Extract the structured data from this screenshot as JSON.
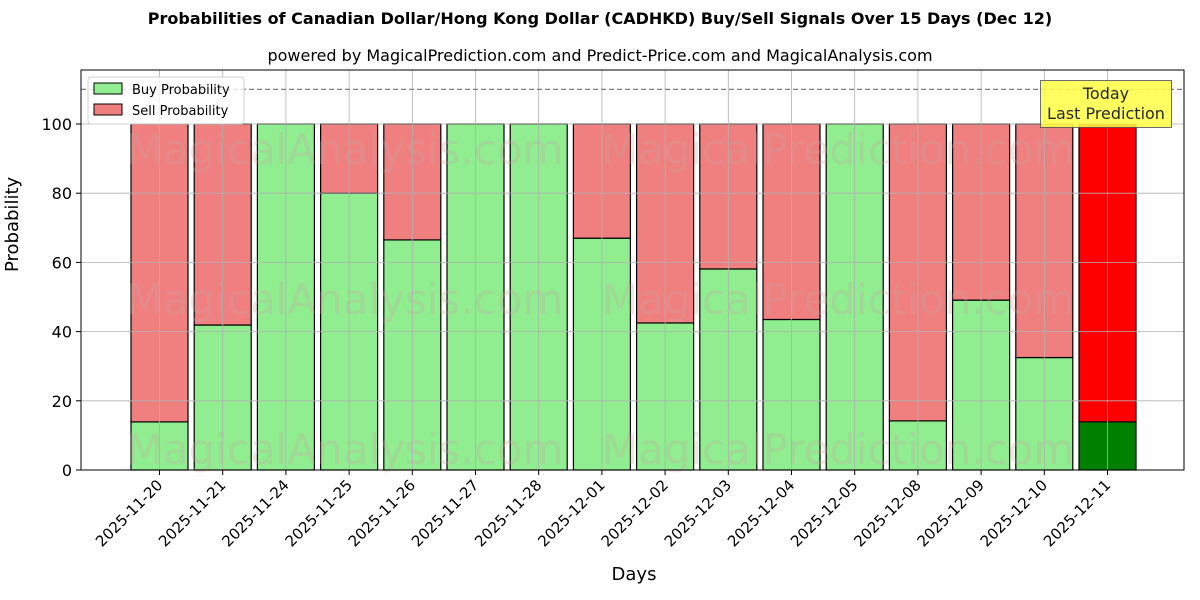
{
  "header": {
    "title": "Probabilities of Canadian Dollar/Hong Kong Dollar (CADHKD) Buy/Sell Signals Over 15 Days (Dec 12)",
    "subtitle": "powered by MagicalPrediction.com and Predict-Price.com and MagicalAnalysis.com"
  },
  "annotation": {
    "line1": "Today",
    "line2": "Last Prediction"
  },
  "watermarks": [
    "MagicalAnalysis.com",
    "MagicalPrediction.com"
  ],
  "colors": {
    "buy": "#90ee90",
    "sell": "#f08080",
    "today_buy": "#008000",
    "today_sell": "#ff0000",
    "annotation_bg": "#ffff44"
  },
  "chart_data": {
    "type": "bar",
    "stacked": true,
    "title": "Probabilities of Canadian Dollar/Hong Kong Dollar (CADHKD) Buy/Sell Signals Over 15 Days (Dec 12)",
    "subtitle": "powered by MagicalPrediction.com and Predict-Price.com and MagicalAnalysis.com",
    "xlabel": "Days",
    "ylabel": "Probability",
    "ylim": [
      0,
      115
    ],
    "yticks": [
      0,
      20,
      40,
      60,
      80,
      100
    ],
    "grid": true,
    "reference_line": {
      "y": 110,
      "style": "dashed"
    },
    "legend": {
      "position": "upper left",
      "entries": [
        "Buy Probability",
        "Sell Probability"
      ]
    },
    "categories": [
      "2025-11-20",
      "2025-11-21",
      "2025-11-24",
      "2025-11-25",
      "2025-11-26",
      "2025-11-27",
      "2025-11-28",
      "2025-12-01",
      "2025-12-02",
      "2025-12-03",
      "2025-12-04",
      "2025-12-05",
      "2025-12-08",
      "2025-12-09",
      "2025-12-10",
      "2025-12-11"
    ],
    "series": [
      {
        "name": "Buy Probability",
        "values": [
          13.9,
          41.9,
          100,
          80,
          66.5,
          100,
          100,
          67,
          42.5,
          58.1,
          43.5,
          100,
          14.2,
          49.1,
          32.5,
          13.9
        ]
      },
      {
        "name": "Sell Probability",
        "values": [
          86.1,
          58.1,
          0,
          20,
          33.5,
          0,
          0,
          33,
          57.5,
          41.9,
          56.5,
          0,
          85.8,
          50.9,
          67.5,
          86.1
        ]
      }
    ],
    "highlight_last": true,
    "annotations": [
      {
        "text": "Today\nLast Prediction",
        "position": "top right"
      }
    ]
  }
}
